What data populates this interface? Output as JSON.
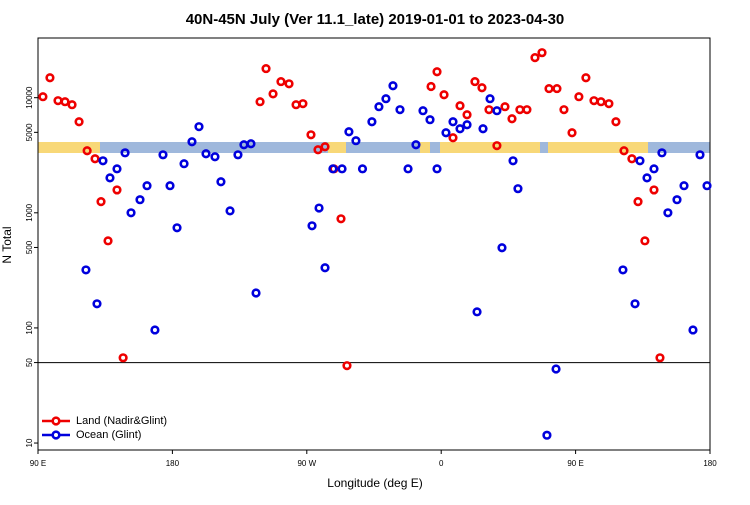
{
  "chart_data": {
    "type": "scatter",
    "title": "40N-45N July (Ver 11.1_late)   2019-01-01 to 2023-04-30",
    "x_label": "Longitude (deg E)",
    "y_label": "N Total",
    "xlim": [
      90,
      540
    ],
    "ylim": [
      8.7,
      33000
    ],
    "log_y": true,
    "legend": "bottom-left",
    "hline": 50,
    "xticks": [
      {
        "value": 90,
        "label": "90 E"
      },
      180,
      {
        "value": 270,
        "label": "90 W"
      },
      {
        "value": 360,
        "label": "0"
      },
      {
        "value": 450,
        "label": "90 E"
      },
      {
        "value": 540,
        "label": "180"
      }
    ],
    "yticks": [
      10,
      50,
      100,
      500,
      1000,
      5000,
      10000
    ],
    "series": [
      {
        "name": "Land (Nadir&Glint)",
        "color": "#ee0000",
        "x": [
          93.3,
          98.0,
          103.4,
          108.1,
          112.8,
          117.5,
          122.9,
          128.2,
          132.2,
          136.9,
          142.9,
          147.0,
          238.7,
          242.7,
          247.4,
          252.7,
          258.1,
          262.8,
          267.4,
          272.8,
          277.5,
          282.2,
          288.2,
          292.9,
          296.9,
          353.2,
          357.2,
          361.9,
          367.9,
          372.6,
          377.3,
          382.6,
          387.3,
          392.0,
          397.3,
          402.7,
          407.4,
          412.7,
          417.4,
          422.8,
          427.5,
          432.2,
          437.5,
          442.2,
          447.6,
          452.2,
          456.9,
          462.3,
          467.0,
          472.3,
          477.0,
          482.4,
          487.7,
          491.8,
          496.4,
          502.5,
          506.5
        ],
        "values": [
          10200,
          14900,
          9420,
          9230,
          8690,
          6180,
          3460,
          2950,
          1250,
          571,
          1580,
          55,
          9230,
          17900,
          10800,
          13800,
          13200,
          8690,
          8870,
          4760,
          3530,
          3750,
          2410,
          887,
          47,
          12500,
          16800,
          10600,
          4490,
          8520,
          7110,
          13800,
          12200,
          7870,
          3830,
          8350,
          6560,
          7870,
          7870,
          22300,
          24600,
          12000,
          12000,
          7870,
          4960,
          10200,
          14900,
          9420,
          9230,
          8870,
          6180,
          3460,
          2950,
          1250,
          571,
          1580,
          55
        ]
      },
      {
        "name": "Ocean (Glint)",
        "color": "#0000dd",
        "x": [
          122.1,
          129.5,
          133.5,
          138.2,
          142.9,
          148.3,
          152.3,
          158.3,
          163.0,
          168.3,
          173.7,
          178.4,
          183.1,
          187.8,
          193.1,
          197.8,
          202.5,
          208.5,
          212.5,
          218.6,
          223.9,
          227.9,
          232.6,
          236.0,
          273.5,
          278.2,
          282.2,
          287.5,
          293.6,
          298.2,
          302.9,
          307.3,
          313.6,
          318.3,
          323.0,
          327.7,
          332.4,
          337.8,
          343.1,
          347.8,
          352.5,
          357.2,
          363.2,
          367.9,
          372.6,
          377.3,
          384.0,
          388.0,
          392.7,
          397.3,
          400.7,
          408.1,
          411.4,
          430.8,
          436.9,
          481.7,
          489.8,
          493.1,
          497.8,
          502.5,
          507.8,
          511.8,
          517.9,
          522.6,
          528.6,
          533.3,
          538.0
        ],
        "values": [
          319,
          162,
          2830,
          2010,
          2410,
          3320,
          1000,
          1300,
          1720,
          96,
          3190,
          1720,
          741,
          2670,
          4140,
          5600,
          3260,
          3070,
          1860,
          1040,
          3190,
          3900,
          3980,
          201,
          771,
          1100,
          333,
          2410,
          2410,
          5060,
          4230,
          2410,
          6180,
          8350,
          9800,
          12700,
          7870,
          2410,
          3900,
          7710,
          6440,
          2410,
          4960,
          6180,
          5370,
          5820,
          138,
          5370,
          9800,
          7710,
          497,
          2830,
          1620,
          11.7,
          44,
          319,
          162,
          2830,
          2010,
          2410,
          3320,
          1000,
          1300,
          1720,
          96,
          3190,
          1720
        ]
      }
    ]
  }
}
